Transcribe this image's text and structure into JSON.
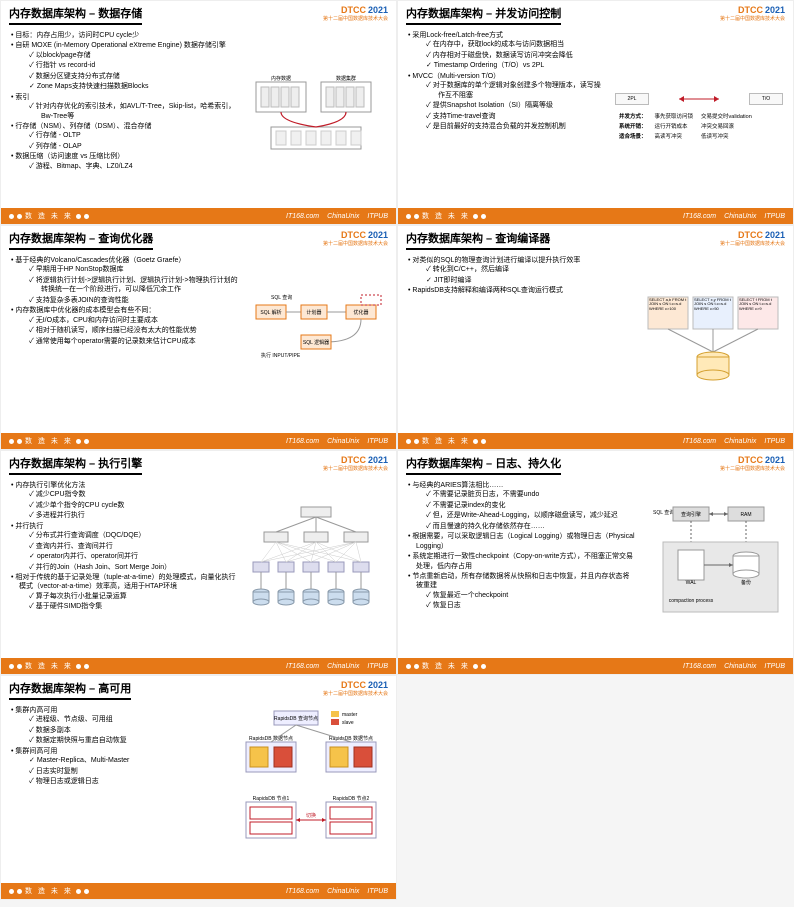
{
  "brand": "DTCC",
  "year": "2021",
  "conf_sub": "第十二届中国数据库技术大会",
  "footer_text": "数 造 未 来",
  "footer_sponsors": [
    "IT168.com",
    "ChinaUnix",
    "ITPUB"
  ],
  "colors": {
    "accent": "#e67817",
    "blue": "#1a5fb4",
    "red": "#c01c28"
  },
  "slides": [
    {
      "title": "内存数据库架构 – 数据存储",
      "bullets": [
        {
          "t": "目标：内存占用少，访问时CPU cycle少"
        },
        {
          "t": "自研 MOXE (in-Memory Operational eXtreme Engine) 数据存储引擎",
          "sub": [
            "以block/page存储",
            "行指针 vs record-id",
            "数据分区键支持分布式存储",
            "Zone Maps支持快速扫描数据Blocks"
          ]
        },
        {
          "t": "索引",
          "sub": [
            "针对内存优化的索引技术，如AVL/T-Tree，Skip-list，哈希索引，Bw-Tree等"
          ]
        },
        {
          "t": "行存储（NSM）、列存储（DSM）、混合存储",
          "sub": [
            "行存储 - OLTP",
            "列存储 - OLAP"
          ]
        },
        {
          "t": "数据压缩（访问速度 vs 压缩比例）",
          "sub": [
            "游程、Bitmap、字典、LZ0/LZ4"
          ]
        }
      ],
      "dia_labels": [
        "内存数据",
        "数据集群"
      ]
    },
    {
      "title": "内存数据库架构 – 并发访问控制",
      "bullets": [
        {
          "t": "采用Lock-free/Latch-free方式",
          "sub": [
            "在内存中，获取lock的成本与访问数据相当",
            "内存相对于磁盘快，数据读写访问冲突会降低",
            "Timestamp Ordering（T/O）vs 2PL"
          ]
        },
        {
          "t": "MVCC（Multi-version T/O）",
          "sub": [
            "对于数据库的单个逻辑对象创建多个物理版本，读写操作互不阻塞",
            "提供Snapshot Isolation（SI）隔离等级",
            "支持Time-travel查询",
            "是目前最好的支持混合负载的并发控制机制"
          ]
        }
      ],
      "dia": {
        "left": "2PL",
        "right": "T/O",
        "rows": [
          [
            "并发方式：",
            "事先获取访问锁",
            "交易提交时validation"
          ],
          [
            "系统开销：",
            "运行开销成本",
            "冲突交易回滚"
          ],
          [
            "适合场景：",
            "高读写冲突",
            "低读写冲突"
          ]
        ]
      }
    },
    {
      "title": "内存数据库架构 – 查询优化器",
      "bullets": [
        {
          "t": "基于经典的Volcano/Cascades优化器（Goetz Graefe）",
          "sub": [
            "早期用于HP NonStop数据库",
            "将逻辑执行计划->逻辑执行计划、逻辑执行计划->物理执行计划的转换统一在一个阶段进行，可以降低冗余工作",
            "支持复杂多表JOIN的查询性能"
          ]
        },
        {
          "t": "内存数据库中优化器的成本模型会有些不同：",
          "sub": [
            "无I/O成本，CPU和内存访问时主要成本",
            "相对于随机读写，顺序扫描已经没有太大的性能优势",
            "通常使用每个operator需要的记录数来估计CPU成本"
          ]
        }
      ],
      "dia_labels": [
        "SQL 查询",
        "SQL 解析",
        "计划器",
        "优化器",
        "SQL 逻辑器",
        "执行 INPUT/PIPE"
      ]
    },
    {
      "title": "内存数据库架构 – 查询编译器",
      "bullets": [
        {
          "t": "对类似的SQL的物理查询计划进行编译以提升执行效率",
          "sub": [
            "转化到C/C++，然后编译",
            "JIT即时编译"
          ]
        },
        {
          "t": "RapidsDB支持解释和编译两种SQL查询运行模式"
        }
      ],
      "dia_labels": [
        "SELECT a,b FROM t JOIN s ON t.c=s.d WHERE c>100",
        "SELECT x,y FROM t JOIN s ON t.c=s.d WHERE c>50",
        "SELECT f FROM t JOIN s ON t.c=s.d WHERE c>9"
      ]
    },
    {
      "title": "内存数据库架构 – 执行引擎",
      "bullets": [
        {
          "t": "内存执行引擎优化方法",
          "sub": [
            "减少CPU指令数",
            "减少单个指令的CPU cycle数",
            "多进程并行执行"
          ]
        },
        {
          "t": "并行执行",
          "sub": [
            "分布式并行查询调度（DQC/DQE）",
            "查询内并行、查询间并行",
            "operator内并行、operator间并行",
            "并行的Join（Hash Join、Sort Merge Join）"
          ]
        },
        {
          "t": "相对于传统的基于记录处理（tuple-at-a-time）的处理模式，向量化执行模式（vector-at-a-time）效率高，适用于HTAP环境",
          "sub": [
            "算子每次执行小批量记录运算",
            "基于硬件SIMD指令集"
          ]
        }
      ]
    },
    {
      "title": "内存数据库架构 – 日志、持久化",
      "bullets": [
        {
          "t": "与经典的ARIES算法相比……",
          "sub": [
            "不需要记录脏页日志，不需要undo",
            "不需要记录index的变化",
            "但，还是Write-Ahead-Logging，以顺序磁盘读写，减少延迟",
            "而且慢速的持久化存储依然存在……"
          ]
        },
        {
          "t": "根据需要，可以采取逻辑日志（Logical Logging）或物理日志（Physical Logging）"
        },
        {
          "t": "系统定期进行一致性checkpoint（Copy-on-write方式），不阻塞正常交易处理，低内存占用"
        },
        {
          "t": "节点重新启动，所有存储数据将从快照和日志中恢复，并且内存状态将被重建",
          "sub": [
            "恢复最近一个checkpoint",
            "恢复日志"
          ]
        }
      ],
      "dia_labels": [
        "SQL 查询",
        "查询引擎",
        "RAM",
        "WAL",
        "备份",
        "compaction process"
      ]
    },
    {
      "title": "内存数据库架构 – 高可用",
      "bullets": [
        {
          "t": "集群内高可用",
          "sub": [
            "进程级、节点级、可用组",
            "数据多副本",
            "数据定期快照与重启自动恢复"
          ]
        },
        {
          "t": "集群间高可用",
          "sub": [
            "Master-Replica、Multi-Master",
            "日志实时复制",
            "物理日志或逻辑日志"
          ]
        }
      ],
      "dia_labels": [
        "RapidsDB 查询节点",
        "master",
        "slave",
        "RapidsDB 数据节点",
        "RapidsDB 数据节点",
        "RapidsDB 节点1",
        "RapidsDB 节点2",
        "切换"
      ]
    }
  ]
}
